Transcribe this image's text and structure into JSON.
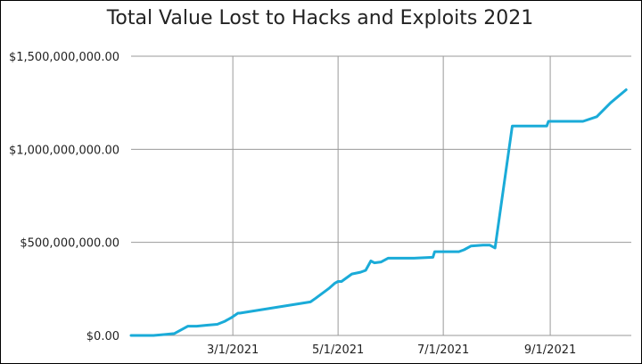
{
  "chart_data": {
    "type": "line",
    "title": "Total Value Lost to Hacks and Exploits 2021",
    "xlabel": "",
    "ylabel": "",
    "ylim": [
      0,
      1500000000
    ],
    "y_ticks": [
      0,
      500000000,
      1000000000,
      1500000000
    ],
    "y_tick_labels": [
      "$0.00",
      "$500,000,000.00",
      "$1,000,000,000.00",
      "$1,500,000,000.00"
    ],
    "xlim": [
      "2021-01-01",
      "2021-10-18"
    ],
    "x_ticks": [
      "2021-03-01",
      "2021-05-01",
      "2021-07-01",
      "2021-09-01"
    ],
    "x_tick_labels": [
      "3/1/2021",
      "5/1/2021",
      "7/1/2021",
      "9/1/2021"
    ],
    "grid": true,
    "line_color": "#1aabd8",
    "series": [
      {
        "name": "",
        "x": [
          "2021-01-01",
          "2021-01-14",
          "2021-01-20",
          "2021-01-26",
          "2021-02-03",
          "2021-02-08",
          "2021-02-14",
          "2021-02-20",
          "2021-02-24",
          "2021-02-28",
          "2021-03-04",
          "2021-03-05",
          "2021-04-15",
          "2021-04-18",
          "2021-04-26",
          "2021-04-29",
          "2021-05-01",
          "2021-05-03",
          "2021-05-09",
          "2021-05-14",
          "2021-05-17",
          "2021-05-20",
          "2021-05-22",
          "2021-05-26",
          "2021-05-30",
          "2021-06-01",
          "2021-06-14",
          "2021-06-25",
          "2021-06-26",
          "2021-07-01",
          "2021-07-10",
          "2021-07-13",
          "2021-07-17",
          "2021-07-24",
          "2021-07-28",
          "2021-07-31",
          "2021-08-10",
          "2021-08-30",
          "2021-08-31",
          "2021-09-15",
          "2021-09-20",
          "2021-09-28",
          "2021-10-06",
          "2021-10-15"
        ],
        "y": [
          0,
          0,
          5000000,
          10000000,
          50000000,
          50000000,
          55000000,
          60000000,
          75000000,
          95000000,
          120000000,
          120000000,
          180000000,
          200000000,
          255000000,
          280000000,
          290000000,
          290000000,
          330000000,
          340000000,
          350000000,
          400000000,
          390000000,
          395000000,
          415000000,
          415000000,
          415000000,
          420000000,
          450000000,
          450000000,
          450000000,
          460000000,
          480000000,
          485000000,
          485000000,
          470000000,
          1125000000,
          1125000000,
          1150000000,
          1150000000,
          1150000000,
          1175000000,
          1250000000,
          1320000000
        ]
      }
    ]
  }
}
